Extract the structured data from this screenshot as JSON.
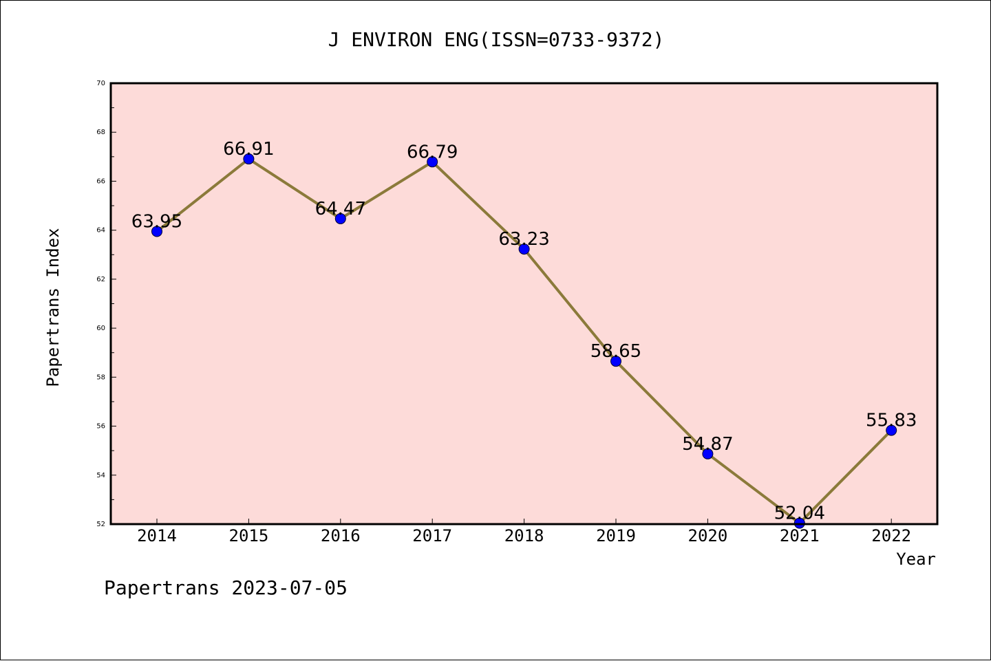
{
  "chart_data": {
    "type": "line",
    "title": "J ENVIRON ENG(ISSN=0733-9372)",
    "xlabel": "Year",
    "ylabel": "Papertrans Index",
    "categories": [
      "2014",
      "2015",
      "2016",
      "2017",
      "2018",
      "2019",
      "2020",
      "2021",
      "2022"
    ],
    "series": [
      {
        "values": [
          63.95,
          66.91,
          64.47,
          66.79,
          63.23,
          58.65,
          54.87,
          52.04,
          55.83
        ],
        "labels": [
          "63.95",
          "66.91",
          "64.47",
          "66.79",
          "63.23",
          "58.65",
          "54.87",
          "52.04",
          "55.83"
        ]
      }
    ],
    "ylim": [
      52,
      70
    ],
    "yticks": [
      52,
      54,
      56,
      58,
      60,
      62,
      64,
      66,
      68,
      70
    ],
    "ytick_labels": [
      "52",
      "54",
      "56",
      "58",
      "60",
      "62",
      "64",
      "66",
      "68",
      "70"
    ],
    "grid": false,
    "colors": {
      "plot_background": "#fddbd9",
      "line": "#8b7a3a",
      "marker": "#0000ff",
      "axes": "#000000"
    }
  },
  "footer": "Papertrans 2023-07-05"
}
